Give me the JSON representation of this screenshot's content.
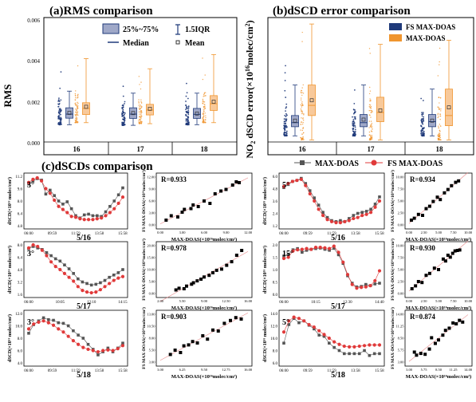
{
  "colors": {
    "fs": "#1f3a7a",
    "maxdoas": "#f0952e",
    "black": "#000000",
    "red": "#e03a3a",
    "grey": "#555555",
    "fit": "#e88a8a"
  },
  "panel_a": {
    "title": "(a)RMS comparison",
    "ylabel": "RMS",
    "yticks": [
      "0.000",
      "0.002",
      "0.004",
      "0.006"
    ],
    "groups": [
      "16",
      "17",
      "18"
    ],
    "legend": {
      "box": "25%~75%",
      "iqr": "1.5IQR",
      "median": "Median",
      "mean": "Mean"
    }
  },
  "panel_b": {
    "title": "(b)dSCD error comparison",
    "ylabel": "NO2 dSCD error(×10¹⁶ molec/cm²)",
    "ylabel_main": "NO",
    "ylabel_sub": "2",
    "ylabel_rest": " dSCD error(×10",
    "ylabel_sup": "16",
    "ylabel_end": "molec/cm",
    "ylabel_sup2": "2",
    "ylabel_close": ")",
    "groups": [
      "16",
      "17",
      "18"
    ],
    "legend": {
      "fs": "FS MAX-DOAS",
      "maxdoas": "MAX-DOAS"
    }
  },
  "panel_c": {
    "title": "(c)dSCDs comparison",
    "legend": {
      "maxdoas": "MAX-DOAS",
      "fs": "FS MAX-DOAS"
    },
    "ts_ylabel": "dSCD(×10¹⁶ molec/cm²)",
    "sc_ylabel": "FS MAX-DOAS(×10¹⁶molec/cm²)",
    "sc_xlabel": "MAX-DOAS(×10¹⁶molec/cm²)",
    "rows": [
      {
        "date": "5/16",
        "left_angle": "3°",
        "right_angle": "5°",
        "left_r": "R=0.933",
        "right_r": "R=0.934",
        "left_times": [
          "06:00",
          "09:59",
          "11:59",
          "13:58",
          "15:58"
        ],
        "right_times": [
          "06:00",
          "09:59",
          "11:59",
          "13:58",
          "15:58"
        ],
        "left_yticks": [
          "4.8",
          "6.4",
          "8.0",
          "9.6",
          "11.2"
        ],
        "right_yticks": [
          "1.2",
          "2.4",
          "3.6",
          "4.8",
          "6.0"
        ]
      },
      {
        "date": "5/17",
        "left_angle": "3°",
        "right_angle": "15°",
        "left_r": "R=0.978",
        "right_r": "R=0.930",
        "left_times": [
          "06:00",
          "10:05",
          "12:10",
          "14:15"
        ],
        "right_times": [
          "06:00",
          "10:15",
          "12:30",
          "14:40"
        ],
        "left_yticks": [
          "1.6",
          "3.2",
          "4.8",
          "6.4",
          "8.0"
        ],
        "right_yticks": [
          "0.0",
          "0.5",
          "1.0",
          "1.5",
          "2.0"
        ]
      },
      {
        "date": "5/18",
        "left_angle": "3°",
        "right_angle": "5°",
        "left_r": "R=0.903",
        "right_r": "R=0.874",
        "left_times": [
          "06:00",
          "09:59",
          "11:59",
          "13:58",
          "15:58"
        ],
        "right_times": [
          "06:00",
          "09:59",
          "11:59",
          "13:58",
          "15:58"
        ],
        "left_yticks": [
          "4.0",
          "6.0",
          "8.0",
          "10.0",
          "12.0"
        ],
        "right_yticks": [
          "6.0",
          "8.0",
          "10.0",
          "12.0",
          "14.0"
        ]
      }
    ]
  },
  "chart_data": [
    {
      "type": "box",
      "title": "(a)RMS comparison",
      "ylabel": "RMS",
      "ylim": [
        0,
        0.006
      ],
      "categories": [
        "16",
        "17",
        "18"
      ],
      "series": [
        {
          "name": "FS MAX-DOAS",
          "q1": [
            0.00117,
            0.00116,
            0.00116
          ],
          "median": [
            0.00137,
            0.00137,
            0.00136
          ],
          "q3": [
            0.00168,
            0.00168,
            0.00165
          ],
          "lower": [
            0.00085,
            0.00082,
            0.00085
          ],
          "upper": [
            0.0025,
            0.0024,
            0.0024
          ],
          "mean": [
            0.00143,
            0.00142,
            0.0014
          ],
          "raw_max": [
            0.0036,
            0.0032,
            0.003
          ]
        },
        {
          "name": "MAX-DOAS",
          "q1": [
            0.00135,
            0.00133,
            0.00155
          ],
          "median": [
            0.00165,
            0.00157,
            0.00188
          ],
          "q3": [
            0.00193,
            0.00185,
            0.00228
          ],
          "lower": [
            0.00095,
            0.0009,
            0.00095
          ],
          "upper": [
            0.0041,
            0.0036,
            0.0043
          ],
          "mean": [
            0.00173,
            0.00163,
            0.00198
          ],
          "raw_max": [
            0.0041,
            0.0036,
            0.0043
          ]
        }
      ]
    },
    {
      "type": "box",
      "title": "(b)dSCD error comparison",
      "ylim": [
        0,
        6
      ],
      "categories": [
        "16",
        "17",
        "18"
      ],
      "series": [
        {
          "name": "FS MAX-DOAS",
          "q1": [
            0.75,
            0.75,
            0.75
          ],
          "median": [
            0.95,
            0.95,
            1.0
          ],
          "q3": [
            1.3,
            1.35,
            1.35
          ],
          "lower": [
            0.3,
            0.3,
            0.3
          ],
          "upper": [
            2.8,
            2.8,
            2.6
          ],
          "mean": [
            1.05,
            1.1,
            1.05
          ],
          "raw_max": [
            3.8,
            3.2,
            2.9
          ]
        },
        {
          "name": "MAX-DOAS",
          "q1": [
            1.3,
            1.0,
            0.8
          ],
          "median": [
            1.8,
            1.45,
            1.3
          ],
          "q3": [
            2.8,
            2.2,
            2.6
          ],
          "lower": [
            0.1,
            0.1,
            0.1
          ],
          "upper": [
            5.8,
            4.8,
            5.0
          ],
          "mean": [
            2.05,
            1.55,
            1.7
          ],
          "raw_max": [
            5.8,
            4.8,
            5.0
          ]
        }
      ]
    },
    {
      "type": "line",
      "title": "5/16 3°",
      "ylim": [
        4.8,
        11.2
      ],
      "series": [
        {
          "name": "MAX-DOAS",
          "values": [
            10.2,
            10.6,
            10.9,
            10.7,
            8.9,
            9.4,
            8.7,
            8.0,
            7.6,
            7.9,
            7.0,
            6.1,
            5.8,
            6.2,
            6.3,
            6.1,
            6.1,
            6.0,
            6.6,
            7.3,
            8.0,
            8.8,
            9.7
          ]
        },
        {
          "name": "FS MAX-DOAS",
          "values": [
            10.4,
            10.8,
            11.0,
            10.6,
            9.6,
            9.0,
            8.1,
            7.3,
            6.9,
            6.5,
            6.0,
            5.9,
            5.7,
            5.6,
            5.6,
            5.6,
            5.7,
            5.8,
            6.1,
            6.5,
            7.0,
            7.7,
            8.5
          ]
        }
      ]
    },
    {
      "type": "scatter",
      "title": "5/16 3° R=0.933",
      "xlabel": "MAX-DOAS(×10¹⁶molec/cm²)",
      "ylabel": "FS MAX-DOAS(×10¹⁶molec/cm²)",
      "xlim": [
        0,
        12
      ],
      "ylim": [
        0,
        12
      ],
      "x": [
        0.8,
        1.5,
        2.4,
        3.0,
        3.3,
        4.2,
        4.5,
        5.2,
        6.0,
        6.8,
        7.5,
        8.3,
        9.0,
        9.9,
        10.4,
        10.8
      ],
      "y": [
        1.2,
        2.3,
        2.0,
        3.2,
        3.9,
        4.1,
        5.0,
        4.6,
        6.0,
        5.4,
        7.8,
        8.5,
        8.9,
        10.0,
        10.8,
        10.6
      ]
    },
    {
      "type": "line",
      "title": "5/16 5°",
      "ylim": [
        1.2,
        6.0
      ],
      "series": [
        {
          "name": "MAX-DOAS",
          "values": [
            4.9,
            5.2,
            5.5,
            5.6,
            5.8,
            5.3,
            4.6,
            3.9,
            3.2,
            2.5,
            2.0,
            1.7,
            1.6,
            1.7,
            1.6,
            1.9,
            2.2,
            2.4,
            2.5,
            2.6,
            2.8,
            3.3,
            4.0
          ]
        },
        {
          "name": "FS MAX-DOAS",
          "values": [
            5.0,
            5.3,
            5.5,
            5.6,
            5.7,
            5.1,
            4.3,
            3.6,
            2.8,
            2.2,
            1.8,
            1.6,
            1.5,
            1.5,
            1.6,
            1.7,
            1.9,
            2.0,
            2.2,
            2.3,
            2.5,
            3.0,
            3.6
          ]
        }
      ]
    },
    {
      "type": "scatter",
      "title": "5/16 5° R=0.934",
      "xlabel": "MAX-DOAS(×10¹⁶molec/cm²)",
      "ylabel": "FS MAX-DOAS(×10¹⁶molec/cm²)",
      "xlim": [
        0,
        10
      ],
      "ylim": [
        0,
        10
      ],
      "x": [
        0.4,
        0.9,
        1.6,
        2.3,
        2.9,
        3.5,
        4.1,
        4.8,
        5.3,
        6.0,
        6.6,
        7.2,
        7.9,
        8.4
      ],
      "y": [
        1.0,
        1.4,
        2.2,
        2.0,
        3.4,
        3.9,
        4.9,
        5.8,
        5.3,
        6.7,
        7.4,
        8.2,
        8.9,
        9.2
      ]
    },
    {
      "type": "line",
      "title": "5/17 3°",
      "ylim": [
        1.6,
        8.0
      ],
      "series": [
        {
          "name": "MAX-DOAS",
          "values": [
            7.5,
            7.8,
            7.6,
            7.4,
            7.0,
            6.6,
            6.2,
            5.9,
            5.4,
            4.9,
            4.3,
            3.6,
            3.2,
            3.0,
            2.8,
            2.9,
            3.1,
            3.4,
            3.8,
            4.1,
            4.4,
            4.8
          ]
        },
        {
          "name": "FS MAX-DOAS",
          "values": [
            7.6,
            8.0,
            7.8,
            7.3,
            6.6,
            5.8,
            5.2,
            4.8,
            4.3,
            3.8,
            3.3,
            2.6,
            2.1,
            1.9,
            1.8,
            1.9,
            2.2,
            2.6,
            3.0,
            3.4,
            3.7,
            3.9
          ]
        }
      ]
    },
    {
      "type": "scatter",
      "title": "5/17 3° R=0.978",
      "xlabel": "MAX-DOAS(×10¹⁶molec/cm²)",
      "ylabel": "FS MAX-DOAS(×10¹⁶molec/cm²)",
      "xlim": [
        2,
        16
      ],
      "ylim": [
        0,
        20
      ],
      "x": [
        4.5,
        5.0,
        5.8,
        6.2,
        7.0,
        7.3,
        7.9,
        8.5,
        9.0,
        9.8,
        10.4,
        11.0,
        11.8,
        12.6,
        13.4,
        14.2,
        15.0
      ],
      "y": [
        1.5,
        2.2,
        2.0,
        3.1,
        3.9,
        4.5,
        5.3,
        6.0,
        6.9,
        7.6,
        8.7,
        9.7,
        10.2,
        11.8,
        13.3,
        16.0,
        18.0
      ]
    },
    {
      "type": "line",
      "title": "5/17 15°",
      "ylim": [
        0,
        2.0
      ],
      "series": [
        {
          "name": "MAX-DOAS",
          "values": [
            1.55,
            1.62,
            1.8,
            1.85,
            1.7,
            1.78,
            1.82,
            1.85,
            1.87,
            1.82,
            1.78,
            1.86,
            1.6,
            1.25,
            0.75,
            0.45,
            0.3,
            0.32,
            0.4,
            0.35,
            0.42,
            0.45
          ]
        },
        {
          "name": "FS MAX-DOAS",
          "values": [
            1.45,
            1.5,
            1.75,
            1.8,
            1.82,
            1.85,
            1.82,
            1.9,
            1.9,
            1.88,
            1.85,
            1.95,
            1.7,
            1.3,
            0.8,
            0.4,
            0.25,
            0.28,
            0.3,
            0.35,
            0.55,
            0.95
          ]
        }
      ]
    },
    {
      "type": "scatter",
      "title": "5/17 15° R=0.930",
      "xlabel": "MAX-DOAS(×10¹⁶molec/cm²)",
      "ylabel": "FS MAX-DOAS(×10¹⁶molec/cm²)",
      "xlim": [
        0,
        10
      ],
      "ylim": [
        0,
        10
      ],
      "x": [
        0.5,
        1.1,
        1.6,
        2.2,
        2.9,
        3.5,
        4.3,
        5.0,
        5.8,
        6.2,
        6.6,
        7.0,
        7.4,
        7.8,
        8.2,
        8.6
      ],
      "y": [
        1.0,
        1.6,
        2.5,
        2.3,
        3.8,
        4.2,
        5.3,
        5.0,
        7.2,
        6.8,
        8.0,
        7.6,
        8.4,
        8.9,
        9.0,
        9.1
      ]
    },
    {
      "type": "line",
      "title": "5/18 3°",
      "ylim": [
        4.0,
        12.0
      ],
      "series": [
        {
          "name": "MAX-DOAS",
          "values": [
            8.8,
            10.2,
            10.8,
            11.3,
            11.0,
            10.9,
            10.5,
            10.4,
            10.0,
            9.2,
            8.5,
            8.0,
            7.0,
            6.2,
            5.3,
            5.8,
            6.4,
            5.8,
            6.4,
            7.2
          ]
        },
        {
          "name": "FS MAX-DOAS",
          "values": [
            9.5,
            10.3,
            10.6,
            10.8,
            10.5,
            10.1,
            9.5,
            9.0,
            8.3,
            7.6,
            7.0,
            6.5,
            6.2,
            6.0,
            5.8,
            6.0,
            6.1,
            6.0,
            6.3,
            6.8
          ]
        }
      ]
    },
    {
      "type": "scatter",
      "title": "5/18 3° R=0.903",
      "xlabel": "MAX-DOAS(×10¹⁶molec/cm²)",
      "ylabel": "FS MAX-DOAS(×10¹⁶molec/cm²)",
      "xlim": [
        3,
        16
      ],
      "ylim": [
        3,
        13
      ],
      "x": [
        4.5,
        5.2,
        6.0,
        6.5,
        7.2,
        7.8,
        8.5,
        9.3,
        10.0,
        10.8,
        11.6,
        12.5,
        13.4,
        14.2,
        15.0
      ],
      "y": [
        4.6,
        5.5,
        5.0,
        6.4,
        6.6,
        7.3,
        7.0,
        8.5,
        7.8,
        9.7,
        9.5,
        11.1,
        11.7,
        12.3,
        12.0
      ]
    },
    {
      "type": "line",
      "title": "5/18 5°",
      "ylim": [
        6.0,
        14.0
      ],
      "series": [
        {
          "name": "MAX-DOAS",
          "values": [
            9.2,
            12.2,
            13.2,
            12.5,
            12.8,
            12.1,
            11.5,
            10.5,
            10.3,
            9.2,
            8.5,
            8.0,
            7.5,
            7.5,
            7.5,
            7.5,
            8.0,
            7.2,
            7.5,
            7.5
          ]
        },
        {
          "name": "FS MAX-DOAS",
          "values": [
            11.0,
            12.8,
            13.4,
            13.2,
            12.8,
            12.2,
            11.8,
            11.2,
            10.6,
            10.0,
            9.4,
            9.0,
            8.7,
            8.6,
            8.6,
            8.7,
            8.8,
            8.9,
            8.9,
            8.9
          ]
        }
      ]
    },
    {
      "type": "scatter",
      "title": "5/18 5° R=0.874",
      "xlabel": "MAX-DOAS(×10¹⁶molec/cm²)",
      "ylabel": "FS MAX-DOAS(×10¹⁶molec/cm²)",
      "xlim": [
        3,
        14
      ],
      "ylim": [
        3,
        14
      ],
      "x": [
        4.0,
        4.4,
        5.2,
        6.0,
        6.8,
        7.2,
        7.9,
        8.5,
        9.3,
        9.8,
        10.5,
        11.2,
        11.8,
        12.4,
        13.0
      ],
      "y": [
        5.3,
        4.6,
        5.0,
        4.8,
        6.0,
        8.6,
        7.3,
        8.1,
        9.2,
        10.3,
        10.8,
        12.0,
        11.8,
        12.6,
        12.2
      ]
    }
  ]
}
